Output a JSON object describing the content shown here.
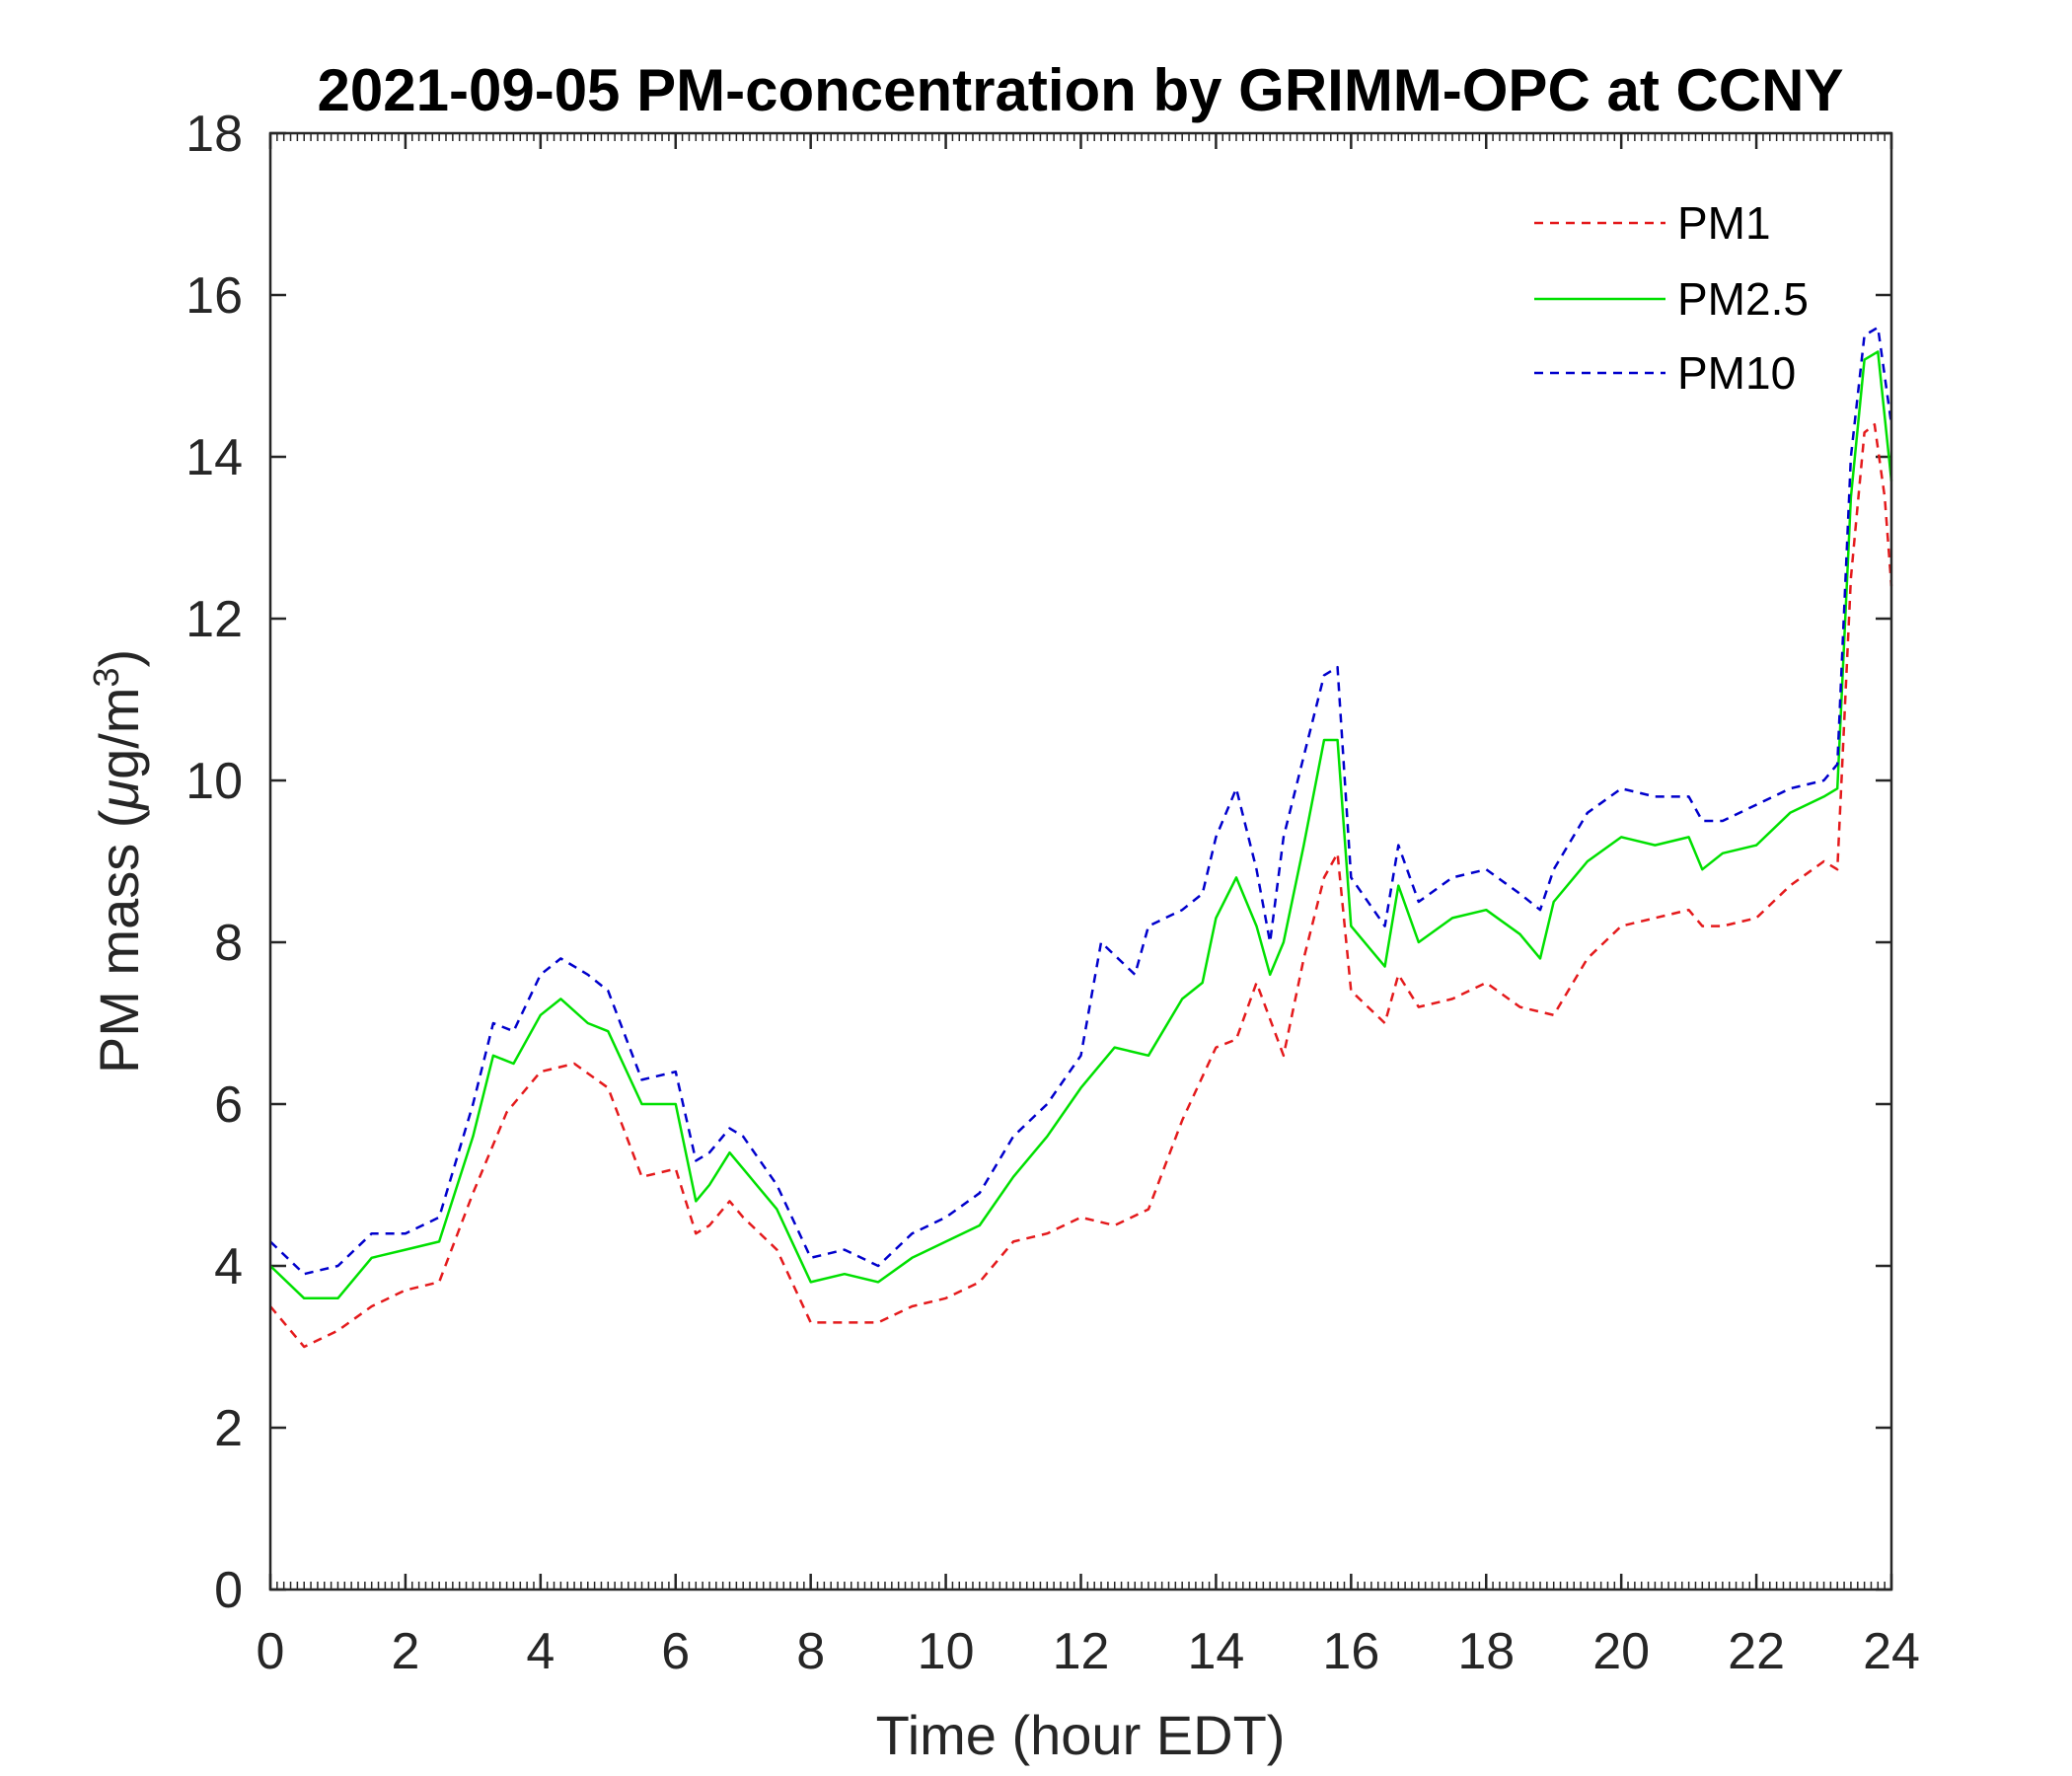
{
  "chart_data": {
    "type": "line",
    "title": "2021-09-05 PM-concentration by GRIMM-OPC at CCNY",
    "xlabel": "Time (hour EDT)",
    "ylabel_prefix": "PM mass (",
    "ylabel_mu": "μ",
    "ylabel_unit": "g/m",
    "ylabel_sup": "3",
    "ylabel_suffix": ")",
    "xlim": [
      0,
      24
    ],
    "ylim": [
      0,
      18
    ],
    "xticks": [
      0,
      2,
      4,
      6,
      8,
      10,
      12,
      14,
      16,
      18,
      20,
      22,
      24
    ],
    "yticks": [
      0,
      2,
      4,
      6,
      8,
      10,
      12,
      14,
      16,
      18
    ],
    "grid": false,
    "legend_position": "top-right",
    "series": [
      {
        "name": "PM1",
        "color": "#e41a1c",
        "style": "dashed",
        "x": [
          0,
          0.5,
          1,
          1.5,
          2,
          2.5,
          3,
          3.5,
          4,
          4.5,
          5,
          5.5,
          6,
          6.3,
          6.5,
          6.8,
          7,
          7.5,
          8,
          8.5,
          9,
          9.5,
          10,
          10.5,
          11,
          11.5,
          12,
          12.5,
          13,
          13.5,
          14,
          14.3,
          14.6,
          15,
          15.3,
          15.6,
          15.8,
          16,
          16.5,
          16.7,
          17,
          17.5,
          18,
          18.5,
          19,
          19.5,
          20,
          20.5,
          21,
          21.2,
          21.5,
          22,
          22.5,
          23,
          23.2,
          23.4,
          23.6,
          23.75,
          23.9,
          24
        ],
        "values": [
          3.5,
          3.0,
          3.2,
          3.5,
          3.7,
          3.8,
          4.9,
          5.9,
          6.4,
          6.5,
          6.2,
          5.1,
          5.2,
          4.4,
          4.5,
          4.8,
          4.6,
          4.2,
          3.3,
          3.3,
          3.3,
          3.5,
          3.6,
          3.8,
          4.3,
          4.4,
          4.6,
          4.5,
          4.7,
          5.8,
          6.7,
          6.8,
          7.5,
          6.6,
          7.8,
          8.8,
          9.1,
          7.4,
          7.0,
          7.6,
          7.2,
          7.3,
          7.5,
          7.2,
          7.1,
          7.8,
          8.2,
          8.3,
          8.4,
          8.2,
          8.2,
          8.3,
          8.7,
          9.0,
          8.9,
          12.5,
          14.3,
          14.4,
          13.5,
          12.4
        ]
      },
      {
        "name": "PM2.5",
        "color": "#00e000",
        "style": "solid",
        "x": [
          0,
          0.5,
          1,
          1.5,
          2,
          2.5,
          3,
          3.3,
          3.6,
          4,
          4.3,
          4.7,
          5,
          5.5,
          6,
          6.3,
          6.5,
          6.8,
          7,
          7.5,
          8,
          8.5,
          9,
          9.5,
          10,
          10.5,
          11,
          11.5,
          12,
          12.5,
          13,
          13.5,
          13.8,
          14,
          14.3,
          14.6,
          14.8,
          15,
          15.3,
          15.6,
          15.8,
          16,
          16.5,
          16.7,
          17,
          17.5,
          18,
          18.5,
          18.8,
          19,
          19.5,
          20,
          20.5,
          21,
          21.2,
          21.5,
          22,
          22.5,
          23,
          23.2,
          23.4,
          23.6,
          23.8,
          24
        ],
        "values": [
          4.0,
          3.6,
          3.6,
          4.1,
          4.2,
          4.3,
          5.6,
          6.6,
          6.5,
          7.1,
          7.3,
          7.0,
          6.9,
          6.0,
          6.0,
          4.8,
          5.0,
          5.4,
          5.2,
          4.7,
          3.8,
          3.9,
          3.8,
          4.1,
          4.3,
          4.5,
          5.1,
          5.6,
          6.2,
          6.7,
          6.6,
          7.3,
          7.5,
          8.3,
          8.8,
          8.2,
          7.6,
          8.0,
          9.2,
          10.5,
          10.5,
          8.2,
          7.7,
          8.7,
          8.0,
          8.3,
          8.4,
          8.1,
          7.8,
          8.5,
          9.0,
          9.3,
          9.2,
          9.3,
          8.9,
          9.1,
          9.2,
          9.6,
          9.8,
          9.9,
          13.5,
          15.2,
          15.3,
          13.7
        ]
      },
      {
        "name": "PM10",
        "color": "#0000cc",
        "style": "dashed",
        "x": [
          0,
          0.5,
          1,
          1.5,
          2,
          2.5,
          3,
          3.3,
          3.6,
          4,
          4.3,
          4.7,
          5,
          5.5,
          6,
          6.3,
          6.5,
          6.8,
          7,
          7.5,
          8,
          8.5,
          9,
          9.5,
          10,
          10.5,
          11,
          11.5,
          12,
          12.3,
          12.8,
          13,
          13.5,
          13.8,
          14,
          14.3,
          14.6,
          14.8,
          15,
          15.3,
          15.6,
          15.8,
          16,
          16.5,
          16.7,
          17,
          17.5,
          18,
          18.5,
          18.8,
          19,
          19.5,
          20,
          20.5,
          21,
          21.2,
          21.5,
          22,
          22.5,
          23,
          23.2,
          23.4,
          23.6,
          23.8,
          24
        ],
        "values": [
          4.3,
          3.9,
          4.0,
          4.4,
          4.4,
          4.6,
          6.0,
          7.0,
          6.9,
          7.6,
          7.8,
          7.6,
          7.4,
          6.3,
          6.4,
          5.3,
          5.4,
          5.7,
          5.6,
          5.0,
          4.1,
          4.2,
          4.0,
          4.4,
          4.6,
          4.9,
          5.6,
          6.0,
          6.6,
          8.0,
          7.6,
          8.2,
          8.4,
          8.6,
          9.3,
          9.9,
          8.9,
          8.0,
          9.3,
          10.3,
          11.3,
          11.4,
          8.8,
          8.2,
          9.2,
          8.5,
          8.8,
          8.9,
          8.6,
          8.4,
          8.9,
          9.6,
          9.9,
          9.8,
          9.8,
          9.5,
          9.5,
          9.7,
          9.9,
          10.0,
          10.2,
          14.0,
          15.5,
          15.6,
          14.4
        ]
      }
    ]
  }
}
